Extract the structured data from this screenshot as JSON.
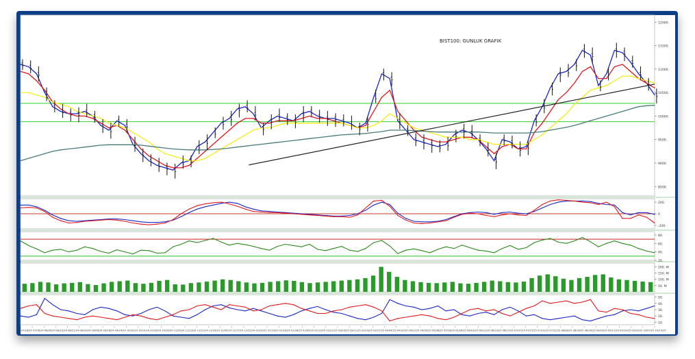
{
  "chart_data": [
    {
      "type": "candlestick",
      "panel": "price",
      "title": "BIST100: GUNLUK GRAFIK",
      "y_ticks": [
        "12000.",
        "11500.",
        "11000.",
        "10500.",
        "10000.",
        "9500.",
        "9000.",
        "8500."
      ],
      "ylim": [
        8300,
        12150
      ],
      "hlines": [
        10270,
        9880
      ],
      "trendline": {
        "from": [
          0.36,
          8960
        ],
        "to": [
          1.0,
          10680
        ]
      },
      "series": [
        {
          "name": "",
          "color": "#1a26c8",
          "points": [
            11100,
            11050,
            10900,
            10500,
            10200,
            10100,
            10050,
            10050,
            10100,
            10000,
            9800,
            9700,
            9900,
            9800,
            9400,
            9200,
            9050,
            8950,
            8900,
            8850,
            9000,
            9050,
            9350,
            9450,
            9650,
            9850,
            9950,
            10150,
            10200,
            10050,
            9750,
            9900,
            10000,
            9950,
            9900,
            10050,
            10100,
            10000,
            9950,
            9950,
            9900,
            9850,
            9750,
            9850,
            10400,
            10900,
            10800,
            9900,
            9700,
            9500,
            9450,
            9400,
            9350,
            9400,
            9600,
            9700,
            9650,
            9500,
            9300,
            9050,
            9500,
            9450,
            9300,
            9350,
            9900,
            10200,
            10600,
            10900,
            10950,
            11100,
            11400,
            11300,
            10650,
            10900,
            11400,
            11350,
            11150,
            10900,
            10700,
            10450
          ]
        },
        {
          "name": "",
          "color": "#e0181c",
          "points": [
            10950,
            10900,
            10750,
            10550,
            10300,
            10150,
            10050,
            10000,
            10000,
            9950,
            9850,
            9750,
            9800,
            9700,
            9500,
            9300,
            9150,
            9050,
            8950,
            8900,
            8900,
            8950,
            9100,
            9250,
            9400,
            9550,
            9700,
            9850,
            9950,
            9950,
            9850,
            9850,
            9900,
            9900,
            9900,
            9950,
            10000,
            9950,
            9950,
            9900,
            9850,
            9800,
            9750,
            9800,
            10100,
            10400,
            10550,
            10100,
            9900,
            9700,
            9550,
            9500,
            9450,
            9450,
            9500,
            9550,
            9550,
            9500,
            9350,
            9200,
            9350,
            9400,
            9300,
            9300,
            9650,
            9850,
            10100,
            10350,
            10500,
            10700,
            10950,
            11050,
            10800,
            10800,
            11050,
            11100,
            10950,
            10800,
            10700,
            10600
          ]
        },
        {
          "name": "",
          "color": "#f2ee18",
          "points": [
            10500,
            10500,
            10450,
            10400,
            10300,
            10250,
            10200,
            10100,
            10050,
            10000,
            9950,
            9850,
            9800,
            9750,
            9650,
            9550,
            9450,
            9300,
            9200,
            9150,
            9100,
            9050,
            9050,
            9100,
            9200,
            9300,
            9400,
            9500,
            9600,
            9700,
            9750,
            9750,
            9800,
            9850,
            9850,
            9850,
            9850,
            9850,
            9850,
            9850,
            9850,
            9800,
            9750,
            9750,
            9800,
            9900,
            10050,
            9950,
            9850,
            9750,
            9700,
            9650,
            9600,
            9550,
            9550,
            9550,
            9500,
            9500,
            9450,
            9400,
            9400,
            9400,
            9400,
            9400,
            9500,
            9600,
            9750,
            9900,
            10050,
            10250,
            10400,
            10550,
            10600,
            10650,
            10750,
            10850,
            10850,
            10800,
            10750,
            10700
          ]
        },
        {
          "name": "",
          "color": "#4a7a7a",
          "points": [
            9050,
            9100,
            9150,
            9200,
            9250,
            9280,
            9300,
            9320,
            9340,
            9360,
            9380,
            9390,
            9390,
            9390,
            9390,
            9380,
            9360,
            9340,
            9320,
            9300,
            9290,
            9280,
            9280,
            9280,
            9290,
            9300,
            9320,
            9340,
            9360,
            9380,
            9400,
            9420,
            9440,
            9460,
            9480,
            9500,
            9520,
            9540,
            9560,
            9580,
            9600,
            9610,
            9620,
            9630,
            9650,
            9670,
            9700,
            9700,
            9700,
            9690,
            9680,
            9670,
            9660,
            9660,
            9660,
            9660,
            9660,
            9660,
            9650,
            9640,
            9640,
            9640,
            9640,
            9640,
            9650,
            9670,
            9700,
            9730,
            9760,
            9800,
            9850,
            9900,
            9950,
            10000,
            10050,
            10100,
            10150,
            10200,
            10220,
            10230
          ]
        }
      ]
    },
    {
      "type": "line",
      "panel": "oscillator",
      "y_ticks": [
        "200.",
        "0",
        "-200."
      ],
      "ylim": [
        -260,
        260
      ],
      "hlines": [
        0
      ],
      "series": [
        {
          "name": "",
          "color": "#1a26c8",
          "points": [
            150,
            150,
            120,
            60,
            -20,
            -80,
            -120,
            -130,
            -120,
            -110,
            -100,
            -90,
            -90,
            -100,
            -120,
            -140,
            -150,
            -150,
            -140,
            -110,
            -50,
            20,
            80,
            120,
            150,
            180,
            200,
            180,
            120,
            80,
            50,
            40,
            30,
            20,
            10,
            0,
            -10,
            -20,
            -30,
            -40,
            -40,
            -30,
            0,
            60,
            150,
            200,
            160,
            10,
            -80,
            -130,
            -140,
            -140,
            -130,
            -100,
            -50,
            0,
            20,
            30,
            20,
            -10,
            20,
            30,
            10,
            0,
            40,
            100,
            160,
            200,
            220,
            220,
            220,
            210,
            180,
            160,
            150,
            20,
            -20,
            20,
            20,
            -10
          ]
        },
        {
          "name": "",
          "color": "#e0181c",
          "points": [
            100,
            110,
            100,
            40,
            -60,
            -120,
            -160,
            -150,
            -130,
            -120,
            -110,
            -100,
            -110,
            -130,
            -160,
            -180,
            -190,
            -180,
            -160,
            -100,
            0,
            80,
            140,
            170,
            190,
            200,
            170,
            130,
            80,
            40,
            30,
            20,
            20,
            10,
            0,
            -10,
            -20,
            -30,
            -40,
            -50,
            -50,
            -60,
            -20,
            100,
            220,
            230,
            130,
            -30,
            -110,
            -160,
            -170,
            -160,
            -140,
            -120,
            -60,
            -10,
            10,
            0,
            -30,
            -50,
            -20,
            0,
            -20,
            -30,
            60,
            160,
            220,
            240,
            230,
            220,
            200,
            190,
            160,
            200,
            120,
            -80,
            -80,
            -20,
            -60,
            -160
          ]
        }
      ]
    },
    {
      "type": "line",
      "panel": "rsi",
      "y_ticks": [
        "80.",
        "60.",
        "40.",
        "20."
      ],
      "ylim": [
        20,
        88
      ],
      "hlines": [
        70,
        30
      ],
      "series": [
        {
          "name": "",
          "color": "#2a8a1a",
          "points": [
            66,
            55,
            47,
            38,
            44,
            46,
            40,
            44,
            52,
            48,
            41,
            37,
            45,
            40,
            35,
            44,
            43,
            37,
            38,
            52,
            58,
            66,
            62,
            67,
            72,
            63,
            56,
            60,
            57,
            53,
            48,
            44,
            53,
            58,
            55,
            52,
            58,
            46,
            43,
            48,
            53,
            44,
            41,
            48,
            62,
            67,
            54,
            36,
            44,
            47,
            43,
            38,
            46,
            52,
            48,
            56,
            50,
            44,
            42,
            38,
            48,
            55,
            46,
            50,
            62,
            68,
            72,
            63,
            60,
            66,
            74,
            64,
            52,
            60,
            66,
            60,
            56,
            48,
            42,
            38
          ]
        }
      ]
    },
    {
      "type": "bar",
      "panel": "volume",
      "y_ticks": [
        "200. M",
        "150. M",
        "100. M",
        "50. M"
      ],
      "ylim": [
        0,
        230
      ],
      "series": [
        {
          "name": "",
          "color": "#2a9a2a",
          "points": [
            65,
            70,
            80,
            75,
            60,
            68,
            72,
            78,
            62,
            55,
            68,
            80,
            85,
            90,
            70,
            65,
            72,
            88,
            95,
            60,
            58,
            70,
            75,
            82,
            90,
            100,
            95,
            85,
            75,
            68,
            72,
            80,
            85,
            92,
            88,
            78,
            70,
            75,
            80,
            85,
            90,
            95,
            100,
            110,
            130,
            200,
            160,
            120,
            95,
            85,
            78,
            72,
            70,
            75,
            80,
            68,
            65,
            72,
            80,
            90,
            85,
            78,
            75,
            82,
            110,
            130,
            140,
            125,
            105,
            95,
            110,
            120,
            135,
            140,
            115,
            100,
            95,
            88,
            82,
            78
          ]
        }
      ]
    },
    {
      "type": "line",
      "panel": "dmi",
      "y_ticks": [
        "50.",
        "40.",
        "30.",
        "20.",
        "10."
      ],
      "ylim": [
        6,
        54
      ],
      "series": [
        {
          "name": "",
          "color": "#1a26c8",
          "points": [
            20,
            18,
            22,
            48,
            38,
            30,
            28,
            24,
            22,
            30,
            34,
            32,
            28,
            22,
            20,
            24,
            30,
            34,
            28,
            20,
            18,
            16,
            22,
            30,
            36,
            38,
            33,
            30,
            28,
            32,
            28,
            24,
            20,
            18,
            22,
            28,
            32,
            35,
            30,
            26,
            24,
            20,
            16,
            14,
            18,
            24,
            46,
            40,
            36,
            34,
            30,
            32,
            36,
            28,
            30,
            22,
            20,
            24,
            26,
            22,
            30,
            34,
            28,
            20,
            22,
            16,
            14,
            16,
            18,
            20,
            14,
            12,
            16,
            20,
            22,
            28,
            30,
            28,
            32,
            36
          ]
        },
        {
          "name": "",
          "color": "#e0181c",
          "points": [
            32,
            36,
            38,
            24,
            20,
            18,
            16,
            14,
            18,
            20,
            18,
            16,
            14,
            18,
            22,
            20,
            16,
            14,
            18,
            22,
            28,
            30,
            36,
            38,
            34,
            30,
            38,
            36,
            34,
            28,
            30,
            36,
            38,
            40,
            38,
            32,
            28,
            24,
            24,
            28,
            30,
            34,
            36,
            38,
            34,
            28,
            12,
            16,
            18,
            20,
            22,
            20,
            16,
            14,
            18,
            24,
            30,
            32,
            28,
            30,
            24,
            20,
            26,
            32,
            36,
            44,
            40,
            42,
            44,
            40,
            42,
            46,
            28,
            26,
            32,
            30,
            24,
            22,
            18,
            16
          ]
        }
      ]
    }
  ],
  "x_labels": [
    "07/18/24",
    "07/26/24",
    "08/05/24",
    "08/13/24",
    "08/21/24",
    "08/29/24",
    "09/06/24",
    "09/16/24",
    "09/24/24",
    "10/02/24",
    "10/10/24",
    "10/18/24",
    "10/28/24",
    "11/05/24",
    "11/13/24",
    "11/21/24",
    "11/29/24",
    "12/09/24",
    "12/17/24",
    "12/25/24",
    "01/02/25",
    "01/10/25",
    "01/20/25",
    "01/28/25",
    "02/05/25",
    "02/13/25",
    "02/21/25",
    "03/03/25",
    "03/11/25",
    "03/19/25",
    "03/27/25",
    "04/04/25",
    "04/14/25",
    "04/22/25",
    "04/30/25",
    "05/08/25",
    "05/16/25",
    "05/26/25",
    "06/03/25",
    "06/11/25",
    "06/19/25",
    "06/27/25",
    "07/07/25",
    "07/15/25",
    "07/23/25",
    "07/31/25",
    "08/08/25",
    "08/18/25",
    "08/26/25",
    "09/03/25",
    "09/11/25",
    "09/19/25",
    "09/29/25",
    "10/07/25",
    "10/15/25"
  ]
}
